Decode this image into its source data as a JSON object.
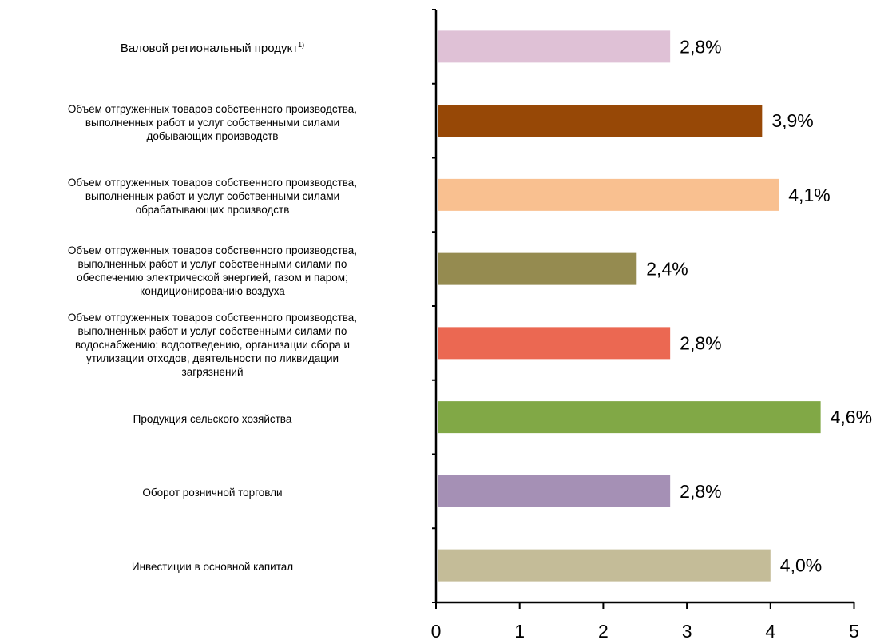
{
  "chart_data": {
    "type": "bar",
    "orientation": "horizontal",
    "categories": [
      "Валовой региональный продукт",
      "Объем отгруженных товаров собственного производства,\nвыполненных работ и услуг собственными силами\nдобывающих производств",
      "Объем отгруженных товаров собственного производства,\nвыполненных работ и услуг собственными силами\nобрабатывающих производств",
      "Объем отгруженных товаров собственного производства,\nвыполненных работ и услуг собственными силами  по\nобеспечению электрической энергией, газом и паром;\nкондиционированию воздуха",
      "Объем отгруженных товаров собственного производства,\nвыполненных работ и услуг собственными силами  по\nводоснабжению; водоотведению, организации сбора и\nутилизации отходов, деятельности по ликвидации\nзагрязнений",
      "Продукция сельского хозяйства",
      "Оборот розничной торговли",
      "Инвестиции в основной капитал"
    ],
    "footnote_marks": [
      "1)",
      "",
      "",
      "",
      "",
      "",
      "",
      ""
    ],
    "values": [
      2.8,
      3.9,
      4.1,
      2.4,
      2.8,
      4.6,
      2.8,
      4.0
    ],
    "data_labels": [
      "2,8%",
      "3,9%",
      "4,1%",
      "2,4%",
      "2,8%",
      "4,6%",
      "2,8%",
      "4,0%"
    ],
    "colors": [
      "#dfc1d6",
      "#974806",
      "#f9c090",
      "#958b50",
      "#eb6852",
      "#81a846",
      "#a590b5",
      "#c4bc98"
    ],
    "xlim": [
      0,
      5
    ],
    "xticks": [
      "0",
      "1",
      "2",
      "3",
      "4",
      "5"
    ],
    "title": "",
    "xlabel": "",
    "ylabel": "",
    "grid": false,
    "legend": "none"
  }
}
